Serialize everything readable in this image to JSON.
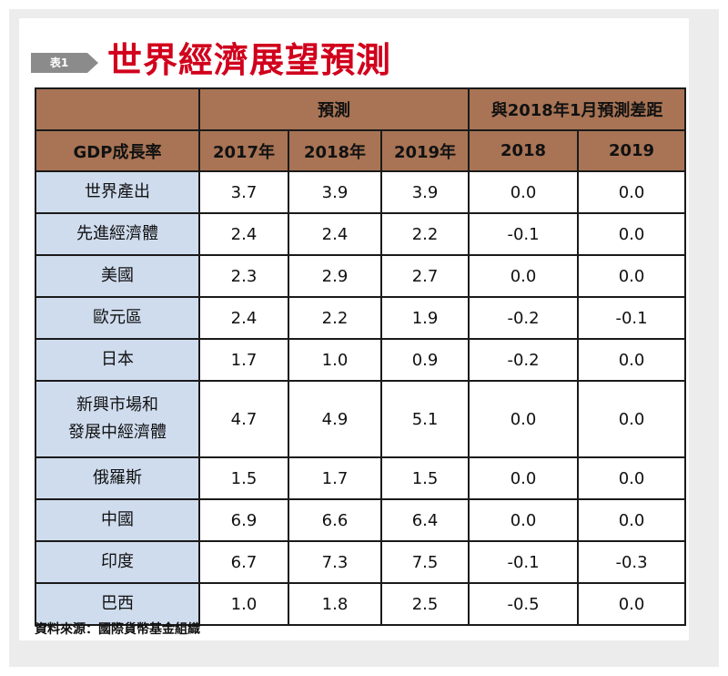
{
  "badge": "表1",
  "title": "世界經濟展望預測",
  "table": {
    "group_forecast": "預測",
    "group_diff": "與2018年1月預測差距",
    "col_headers": [
      "GDP成長率",
      "2017年",
      "2018年",
      "2019年",
      "2018",
      "2019"
    ],
    "rows": [
      {
        "label": "世界產出",
        "values": [
          "3.7",
          "3.9",
          "3.9",
          "0.0",
          "0.0"
        ]
      },
      {
        "label": "先進經濟體",
        "values": [
          "2.4",
          "2.4",
          "2.2",
          "-0.1",
          "0.0"
        ]
      },
      {
        "label": "美國",
        "values": [
          "2.3",
          "2.9",
          "2.7",
          "0.0",
          "0.0"
        ]
      },
      {
        "label": "歐元區",
        "values": [
          "2.4",
          "2.2",
          "1.9",
          "-0.2",
          "-0.1"
        ]
      },
      {
        "label": "日本",
        "values": [
          "1.7",
          "1.0",
          "0.9",
          "-0.2",
          "0.0"
        ]
      },
      {
        "label": "新興市場和\n發展中經濟體",
        "values": [
          "4.7",
          "4.9",
          "5.1",
          "0.0",
          "0.0"
        ]
      },
      {
        "label": "俄羅斯",
        "values": [
          "1.5",
          "1.7",
          "1.5",
          "0.0",
          "0.0"
        ]
      },
      {
        "label": "中國",
        "values": [
          "6.9",
          "6.6",
          "6.4",
          "0.0",
          "0.0"
        ]
      },
      {
        "label": "印度",
        "values": [
          "6.7",
          "7.3",
          "7.5",
          "-0.1",
          "-0.3"
        ]
      },
      {
        "label": "巴西",
        "values": [
          "1.0",
          "1.8",
          "2.5",
          "-0.5",
          "0.0"
        ]
      }
    ]
  },
  "source": "資料來源：國際貨幣基金組織",
  "colors": {
    "title": "#d1001c",
    "header_bg": "#a87455",
    "row_label_bg": "#cfdcee",
    "badge_bg": "#8b8b8b"
  }
}
